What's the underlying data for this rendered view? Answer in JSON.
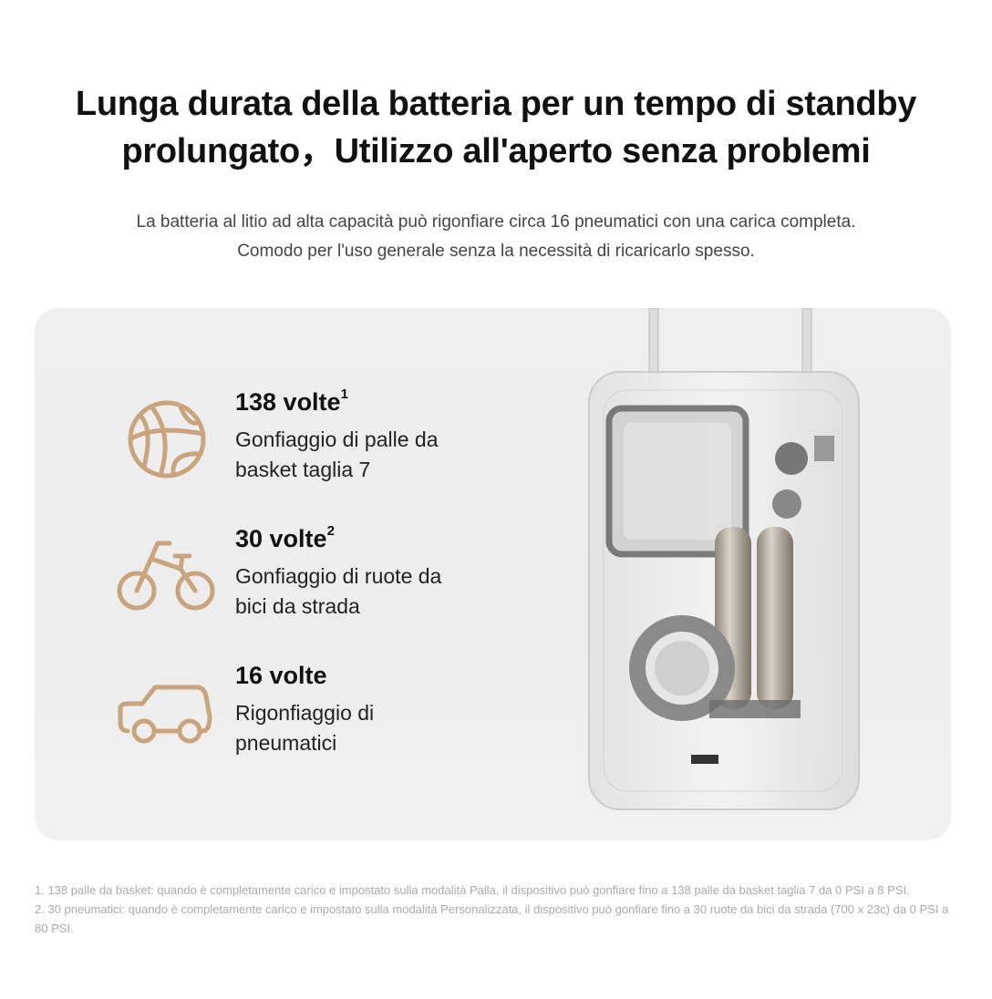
{
  "header": {
    "title_line1": "Lunga durata della batteria per un tempo di standby",
    "title_line2": "prolungato，Utilizzo all'aperto senza problemi",
    "subtitle_line1": "La batteria al litio ad alta capacità può rigonfiare circa 16 pneumatici con una carica completa.",
    "subtitle_line2": "Comodo per l'uso generale senza la necessità di ricaricarlo spesso."
  },
  "stats": [
    {
      "icon": "basketball-icon",
      "value": "138 volte",
      "footnote": "1",
      "desc_line1": "Gonfiaggio di palle da",
      "desc_line2": "basket taglia 7"
    },
    {
      "icon": "bicycle-icon",
      "value": "30 volte",
      "footnote": "2",
      "desc_line1": "Gonfiaggio di ruote da",
      "desc_line2": "bici da strada"
    },
    {
      "icon": "car-icon",
      "value": "16 volte",
      "footnote": "",
      "desc_line1": "Rigonfiaggio di",
      "desc_line2": "pneumatici"
    }
  ],
  "footnotes": [
    "1.  138 palle da basket: quando è completamente carico e impostato sulla modalità Palla, il dispositivo può gonfiare fino a 138 palle da basket taglia 7 da 0 PSI a 8 PSI.",
    "2.  30 pneumatici: quando è completamente carico e impostato sulla modalità Personalizzata, il dispositivo può gonfiare fino a 30 ruote da bici da strada (700 x 23c) da 0 PSI a 80 PSI."
  ],
  "colors": {
    "icon_accent": "#c9a47c",
    "card_background": "#efefef",
    "footnote_text": "#aaaaaa"
  }
}
